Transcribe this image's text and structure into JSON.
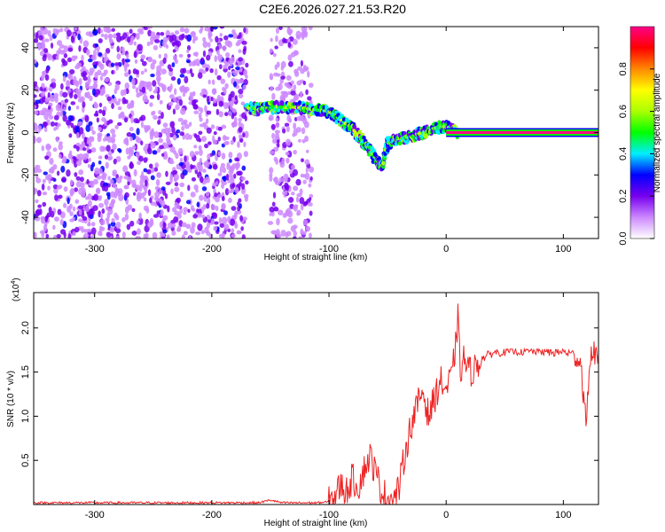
{
  "title": "C2E6.2026.027.21.53.R20",
  "chart_data": [
    {
      "type": "heatmap",
      "xlabel": "Height of straight line (km)",
      "ylabel": "Frequency (Hz)",
      "xlim": [
        -352,
        130
      ],
      "ylim": [
        -50,
        50
      ],
      "x_ticks": [
        "-300",
        "-200",
        "-100",
        "0",
        "100"
      ],
      "x_tick_values": [
        -300,
        -200,
        -100,
        0,
        100
      ],
      "y_ticks": [
        "-40",
        "-20",
        "0",
        "20",
        "40"
      ],
      "y_tick_values": [
        -40,
        -20,
        0,
        20,
        40
      ],
      "colorbar": {
        "label": "Normalized spectral amplitude",
        "range": [
          0,
          1
        ],
        "ticks": [
          "0.0",
          "0.2",
          "0.4",
          "0.6",
          "0.8"
        ],
        "tick_values": [
          0.0,
          0.2,
          0.4,
          0.6,
          0.8
        ],
        "colors": [
          "#ffffff",
          "#cc88ff",
          "#7700ee",
          "#0000ff",
          "#00eeff",
          "#00ff00",
          "#aaff00",
          "#ffff00",
          "#ff8800",
          "#ff0000",
          "#ff0088"
        ]
      },
      "noise_region": [
        -352,
        -170
      ],
      "noise_band": [
        -150,
        -115
      ],
      "signal_trace": [
        {
          "x": -170,
          "y": 12
        },
        {
          "x": -160,
          "y": 11
        },
        {
          "x": -145,
          "y": 12
        },
        {
          "x": -130,
          "y": 12
        },
        {
          "x": -115,
          "y": 11
        },
        {
          "x": -100,
          "y": 10
        },
        {
          "x": -90,
          "y": 6
        },
        {
          "x": -80,
          "y": 2
        },
        {
          "x": -70,
          "y": -5
        },
        {
          "x": -62,
          "y": -11
        },
        {
          "x": -55,
          "y": -16
        },
        {
          "x": -50,
          "y": -5
        },
        {
          "x": -40,
          "y": -3
        },
        {
          "x": -30,
          "y": -2
        },
        {
          "x": -20,
          "y": 0
        },
        {
          "x": -10,
          "y": 2
        },
        {
          "x": 0,
          "y": 3
        },
        {
          "x": 10,
          "y": 0
        }
      ],
      "carrier_line": {
        "x_start": 0,
        "x_end": 130,
        "y": 0
      }
    },
    {
      "type": "line",
      "xlabel": "Height of straight line (km)",
      "ylabel": "SNR (10 * v/v)",
      "y_multiplier": "(x10",
      "y_multiplier_exp": "4",
      "y_multiplier_close": ")",
      "xlim": [
        -352,
        130
      ],
      "ylim": [
        0,
        2.4
      ],
      "x_ticks": [
        "-300",
        "-200",
        "-100",
        "0",
        "100"
      ],
      "x_tick_values": [
        -300,
        -200,
        -100,
        0,
        100
      ],
      "y_ticks": [
        "0.5",
        "1.0",
        "1.5",
        "2.0"
      ],
      "y_tick_values": [
        0.5,
        1.0,
        1.5,
        2.0
      ],
      "color": "#ee2222",
      "series": [
        {
          "x": [
            -352,
            -300,
            -200,
            -160,
            -150,
            -140,
            -110,
            -100,
            -95,
            -90,
            -85,
            -80,
            -75,
            -70,
            -65,
            -60,
            -55,
            -50,
            -45,
            -40,
            -35,
            -30,
            -25,
            -20,
            -15,
            -10,
            -5,
            0,
            5,
            8,
            10,
            12,
            15,
            20,
            25,
            30,
            40,
            50,
            60,
            70,
            80,
            90,
            100,
            110,
            115,
            118,
            120,
            122,
            125,
            130
          ],
          "y": [
            0.02,
            0.02,
            0.02,
            0.02,
            0.05,
            0.02,
            0.02,
            0.03,
            0.1,
            0.22,
            0.15,
            0.3,
            0.2,
            0.4,
            0.55,
            0.35,
            0.15,
            0.08,
            0.05,
            0.2,
            0.6,
            0.9,
            1.1,
            1.3,
            1.0,
            1.2,
            1.4,
            1.3,
            1.45,
            1.8,
            2.1,
            1.5,
            1.65,
            1.5,
            1.55,
            1.65,
            1.72,
            1.73,
            1.74,
            1.73,
            1.74,
            1.72,
            1.73,
            1.7,
            1.6,
            1.1,
            0.9,
            1.6,
            1.72,
            1.72
          ]
        }
      ]
    }
  ]
}
